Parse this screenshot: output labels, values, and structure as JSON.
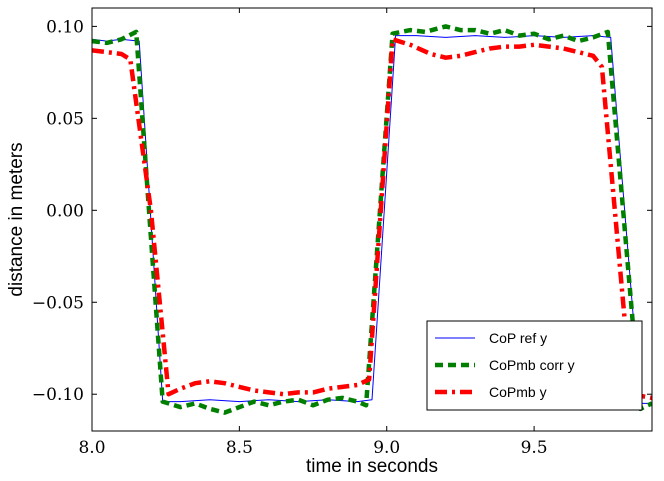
{
  "chart_data": {
    "type": "line",
    "xlabel": "time in seconds",
    "ylabel": "distance in meters",
    "xlim": [
      8.0,
      9.9
    ],
    "ylim": [
      -0.12,
      0.11
    ],
    "xticks": [
      8.0,
      8.5,
      9.0,
      9.5
    ],
    "xtick_labels": [
      "8.0",
      "8.5",
      "9.0",
      "9.5"
    ],
    "yticks": [
      0.1,
      0.05,
      0.0,
      -0.05,
      -0.1
    ],
    "ytick_labels": [
      "0.10",
      "0.05",
      "0.00",
      "−0.05",
      "−0.10"
    ],
    "grid": false,
    "legend_position": "lower-right",
    "series": [
      {
        "name": "CoP ref y",
        "color": "#0000ff",
        "style": "solid",
        "x": [
          8.0,
          8.05,
          8.1,
          8.16,
          8.24,
          8.3,
          8.4,
          8.5,
          8.6,
          8.7,
          8.8,
          8.9,
          8.95,
          9.03,
          9.1,
          9.2,
          9.3,
          9.4,
          9.5,
          9.6,
          9.7,
          9.76,
          9.86,
          9.9
        ],
        "y": [
          0.093,
          0.092,
          0.093,
          0.092,
          -0.104,
          -0.104,
          -0.103,
          -0.104,
          -0.103,
          -0.104,
          -0.103,
          -0.104,
          -0.103,
          0.095,
          0.095,
          0.094,
          0.095,
          0.094,
          0.095,
          0.094,
          0.095,
          0.094,
          -0.105,
          -0.105
        ]
      },
      {
        "name": "CoPmb corr y",
        "color": "#007f00",
        "style": "dashed",
        "x": [
          8.0,
          8.05,
          8.1,
          8.15,
          8.24,
          8.3,
          8.35,
          8.4,
          8.45,
          8.5,
          8.55,
          8.6,
          8.65,
          8.7,
          8.75,
          8.8,
          8.85,
          8.9,
          8.93,
          9.02,
          9.08,
          9.13,
          9.2,
          9.25,
          9.3,
          9.35,
          9.4,
          9.45,
          9.5,
          9.55,
          9.6,
          9.65,
          9.7,
          9.75,
          9.86,
          9.9
        ],
        "y": [
          0.092,
          0.091,
          0.093,
          0.097,
          -0.104,
          -0.107,
          -0.105,
          -0.108,
          -0.11,
          -0.107,
          -0.104,
          -0.106,
          -0.104,
          -0.103,
          -0.106,
          -0.103,
          -0.102,
          -0.104,
          -0.106,
          0.096,
          0.098,
          0.097,
          0.1,
          0.098,
          0.098,
          0.096,
          0.098,
          0.095,
          0.096,
          0.093,
          0.095,
          0.092,
          0.094,
          0.097,
          -0.108,
          -0.105
        ]
      },
      {
        "name": "CoPmb y",
        "color": "#ff0000",
        "style": "dashdot",
        "x": [
          8.0,
          8.05,
          8.1,
          8.13,
          8.2,
          8.26,
          8.3,
          8.35,
          8.4,
          8.45,
          8.5,
          8.55,
          8.6,
          8.65,
          8.7,
          8.75,
          8.8,
          8.85,
          8.9,
          8.94,
          9.02,
          9.08,
          9.15,
          9.2,
          9.25,
          9.3,
          9.35,
          9.4,
          9.45,
          9.5,
          9.55,
          9.6,
          9.65,
          9.7,
          9.73,
          9.83,
          9.9
        ],
        "y": [
          0.087,
          0.086,
          0.085,
          0.082,
          0.0,
          -0.1,
          -0.097,
          -0.094,
          -0.093,
          -0.094,
          -0.096,
          -0.098,
          -0.099,
          -0.1,
          -0.099,
          -0.099,
          -0.097,
          -0.096,
          -0.095,
          -0.092,
          0.093,
          0.09,
          0.085,
          0.083,
          0.084,
          0.086,
          0.088,
          0.089,
          0.089,
          0.09,
          0.089,
          0.088,
          0.086,
          0.084,
          0.078,
          -0.1,
          -0.102
        ]
      }
    ]
  }
}
